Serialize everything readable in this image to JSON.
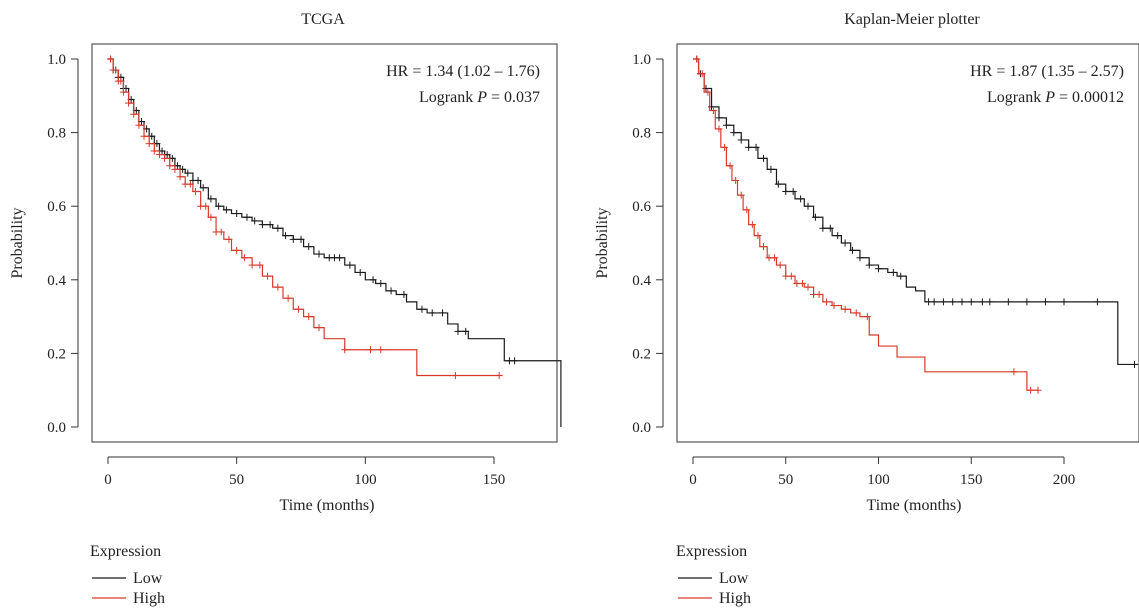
{
  "chart_data": [
    {
      "type": "line",
      "subtype": "kaplan-meier",
      "title": "TCGA",
      "xlabel": "Time (months)",
      "ylabel": "Probability",
      "xlim": [
        0,
        176
      ],
      "ylim": [
        0,
        1.0
      ],
      "xticks": [
        "0",
        "50",
        "100",
        "150"
      ],
      "xtick_values": [
        0,
        50,
        100,
        150
      ],
      "yticks": [
        "0.0",
        "0.2",
        "0.4",
        "0.6",
        "0.8",
        "1.0"
      ],
      "ytick_values": [
        0,
        0.2,
        0.4,
        0.6,
        0.8,
        1.0
      ],
      "annotation": {
        "hr": "HR = 1.34 (1.02 – 1.76)",
        "logrank_prefix": "Logrank ",
        "logrank_p": "P",
        "logrank_suffix": " = 0.037"
      },
      "legend": {
        "title": "Expression",
        "placement": "bottom-left",
        "entries": [
          "Low",
          "High"
        ]
      },
      "series": [
        {
          "name": "Low",
          "color": "#1a1a1a",
          "x": [
            0,
            2,
            4,
            6,
            8,
            10,
            12,
            14,
            16,
            18,
            20,
            22,
            24,
            26,
            28,
            30,
            33,
            36,
            39,
            42,
            45,
            48,
            52,
            56,
            60,
            64,
            68,
            72,
            76,
            80,
            84,
            88,
            92,
            96,
            100,
            104,
            108,
            112,
            116,
            120,
            124,
            128,
            132,
            136,
            140,
            145,
            150,
            154,
            160,
            166,
            172,
            176
          ],
          "y": [
            1.0,
            0.97,
            0.95,
            0.92,
            0.89,
            0.86,
            0.83,
            0.81,
            0.79,
            0.77,
            0.75,
            0.74,
            0.73,
            0.71,
            0.7,
            0.69,
            0.67,
            0.65,
            0.62,
            0.6,
            0.59,
            0.58,
            0.57,
            0.56,
            0.55,
            0.54,
            0.52,
            0.51,
            0.49,
            0.47,
            0.46,
            0.46,
            0.44,
            0.42,
            0.4,
            0.39,
            0.37,
            0.36,
            0.34,
            0.32,
            0.31,
            0.31,
            0.28,
            0.26,
            0.24,
            0.24,
            0.24,
            0.18,
            0.18,
            0.18,
            0.18,
            0.0
          ],
          "censor_x": [
            1,
            2,
            3,
            4,
            5,
            6,
            7,
            9,
            11,
            13,
            15,
            17,
            19,
            21,
            23,
            25,
            27,
            29,
            31,
            33,
            35,
            37,
            40,
            43,
            46,
            50,
            54,
            57,
            60,
            63,
            66,
            69,
            72,
            75,
            78,
            82,
            86,
            88,
            90,
            94,
            98,
            103,
            106,
            110,
            115,
            122,
            126,
            130,
            136,
            139,
            156,
            158
          ]
        },
        {
          "name": "High",
          "color": "#d73a2a",
          "x": [
            0,
            2,
            4,
            6,
            8,
            10,
            12,
            14,
            16,
            18,
            20,
            22,
            24,
            26,
            28,
            30,
            33,
            36,
            39,
            42,
            45,
            48,
            52,
            56,
            60,
            64,
            68,
            72,
            76,
            80,
            84,
            88,
            92,
            96,
            100,
            110,
            120,
            130,
            140,
            150,
            153
          ],
          "y": [
            1.0,
            0.97,
            0.94,
            0.91,
            0.88,
            0.85,
            0.82,
            0.79,
            0.77,
            0.75,
            0.74,
            0.73,
            0.71,
            0.7,
            0.68,
            0.66,
            0.64,
            0.6,
            0.57,
            0.53,
            0.51,
            0.48,
            0.46,
            0.44,
            0.41,
            0.38,
            0.35,
            0.32,
            0.3,
            0.27,
            0.24,
            0.24,
            0.21,
            0.21,
            0.21,
            0.21,
            0.14,
            0.14,
            0.14,
            0.14,
            0.14
          ],
          "censor_x": [
            1,
            2,
            3,
            4,
            5,
            6,
            8,
            10,
            12,
            14,
            16,
            18,
            20,
            22,
            24,
            26,
            28,
            30,
            32,
            34,
            36,
            38,
            40,
            42,
            44,
            47,
            50,
            53,
            56,
            59,
            62,
            66,
            70,
            74,
            78,
            82,
            92,
            102,
            106,
            135,
            152
          ]
        }
      ]
    },
    {
      "type": "line",
      "subtype": "kaplan-meier",
      "title": "Kaplan-Meier plotter",
      "xlabel": "Time (months)",
      "ylabel": "Probability",
      "xlim": [
        0,
        240
      ],
      "ylim": [
        0,
        1.0
      ],
      "xticks": [
        "0",
        "50",
        "100",
        "150",
        "200"
      ],
      "xtick_values": [
        0,
        50,
        100,
        150,
        200
      ],
      "yticks": [
        "0.0",
        "0.2",
        "0.4",
        "0.6",
        "0.8",
        "1.0"
      ],
      "ytick_values": [
        0,
        0.2,
        0.4,
        0.6,
        0.8,
        1.0
      ],
      "annotation": {
        "hr": "HR = 1.87 (1.35 – 2.57)",
        "logrank_prefix": "Logrank ",
        "logrank_p": "P",
        "logrank_suffix": " = 0.00012"
      },
      "legend": {
        "title": "Expression",
        "placement": "bottom-left",
        "entries": [
          "Low",
          "High"
        ]
      },
      "series": [
        {
          "name": "Low",
          "color": "#1a1a1a",
          "x": [
            0,
            3,
            6,
            10,
            14,
            18,
            22,
            26,
            30,
            35,
            40,
            45,
            50,
            55,
            60,
            65,
            70,
            75,
            80,
            85,
            90,
            95,
            100,
            105,
            110,
            115,
            120,
            125,
            130,
            140,
            160,
            180,
            200,
            220,
            229,
            240
          ],
          "y": [
            1.0,
            0.96,
            0.92,
            0.87,
            0.84,
            0.82,
            0.8,
            0.78,
            0.76,
            0.73,
            0.7,
            0.66,
            0.64,
            0.62,
            0.6,
            0.57,
            0.54,
            0.52,
            0.5,
            0.48,
            0.46,
            0.44,
            0.43,
            0.42,
            0.41,
            0.38,
            0.37,
            0.34,
            0.34,
            0.34,
            0.34,
            0.34,
            0.34,
            0.34,
            0.17,
            0.17
          ],
          "censor_x": [
            2,
            4,
            7,
            10,
            14,
            18,
            22,
            26,
            30,
            34,
            38,
            42,
            46,
            50,
            54,
            58,
            62,
            66,
            70,
            74,
            78,
            82,
            86,
            90,
            95,
            100,
            108,
            112,
            127,
            130,
            135,
            140,
            145,
            150,
            156,
            160,
            170,
            180,
            190,
            200,
            218,
            238
          ]
        },
        {
          "name": "High",
          "color": "#d73a2a",
          "x": [
            0,
            3,
            6,
            9,
            12,
            15,
            18,
            21,
            24,
            27,
            30,
            33,
            36,
            40,
            45,
            50,
            55,
            60,
            65,
            70,
            75,
            80,
            85,
            90,
            95,
            100,
            110,
            125,
            150,
            175,
            180,
            186
          ],
          "y": [
            1.0,
            0.96,
            0.91,
            0.86,
            0.81,
            0.76,
            0.71,
            0.67,
            0.63,
            0.59,
            0.55,
            0.52,
            0.49,
            0.46,
            0.44,
            0.41,
            0.39,
            0.38,
            0.36,
            0.34,
            0.33,
            0.32,
            0.31,
            0.3,
            0.25,
            0.22,
            0.19,
            0.15,
            0.15,
            0.15,
            0.1,
            0.1
          ],
          "censor_x": [
            2,
            5,
            8,
            11,
            14,
            17,
            20,
            23,
            26,
            29,
            32,
            35,
            38,
            41,
            44,
            47,
            50,
            53,
            56,
            59,
            62,
            65,
            68,
            72,
            76,
            82,
            88,
            94,
            173,
            182,
            186
          ]
        }
      ]
    }
  ]
}
